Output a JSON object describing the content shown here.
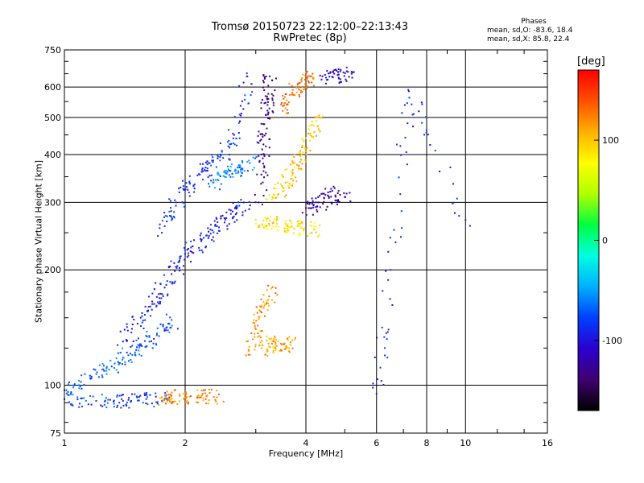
{
  "chart_data": {
    "type": "scatter",
    "title": "Tromsø 20150723 22:12:00–22:13:43",
    "subtitle": "RwPretec (8p)",
    "xlabel": "Frequency [MHz]",
    "ylabel": "Stationary phase Virtual Height [km]",
    "x_scale": "log",
    "y_scale": "log",
    "xlim": [
      1,
      16
    ],
    "ylim": [
      75,
      750
    ],
    "x_ticks": [
      "1",
      "2",
      "4",
      "6",
      "8",
      "10",
      "16"
    ],
    "y_ticks": [
      "75",
      "100",
      "200",
      "300",
      "400",
      "500",
      "600",
      "750"
    ],
    "x_ticks_numeric": [
      1,
      2,
      4,
      6,
      8,
      10,
      16
    ],
    "y_ticks_numeric": [
      75,
      100,
      200,
      300,
      400,
      500,
      600,
      750
    ],
    "grid": true,
    "colorbar": {
      "label": "[deg]",
      "ticks": [
        "100",
        "0",
        "-100"
      ],
      "ticks_numeric": [
        100,
        0,
        -100
      ],
      "range": [
        -170,
        170
      ],
      "colors": [
        "#000000",
        "#400070",
        "#2a00d0",
        "#0040ff",
        "#00b0ff",
        "#00ffe0",
        "#00ff40",
        "#b0ff00",
        "#ffff00",
        "#ffb000",
        "#ff5000",
        "#ff0000"
      ]
    },
    "annotations": {
      "phases_title": "Phases",
      "sd_o": "mean, sd,O:  -83.6, 18.4",
      "sd_x": "mean, sd,X:   85.8, 22.4"
    },
    "series": [
      {
        "x": [
          1.0,
          1.1,
          1.25,
          1.4,
          1.55,
          1.7,
          1.85
        ],
        "y": [
          97,
          102,
          110,
          118,
          128,
          135,
          148
        ],
        "phase": -70
      },
      {
        "x": [
          1.0,
          1.2,
          1.4,
          1.6,
          1.8
        ],
        "y": [
          92,
          91,
          91,
          92,
          92
        ],
        "phase": -80
      },
      {
        "x": [
          1.75,
          1.85,
          2.0,
          2.2,
          2.4
        ],
        "y": [
          93,
          94,
          93,
          94,
          93
        ],
        "phase": 120
      },
      {
        "x": [
          1.4,
          1.55,
          1.7,
          1.85,
          2.0,
          2.2,
          2.4,
          2.6,
          2.8
        ],
        "y": [
          130,
          150,
          170,
          195,
          220,
          240,
          260,
          280,
          300
        ],
        "phase": -95
      },
      {
        "x": [
          1.75,
          1.9,
          2.05,
          2.25,
          2.45,
          2.65,
          2.85
        ],
        "y": [
          250,
          300,
          340,
          370,
          400,
          450,
          640
        ],
        "phase": -85
      },
      {
        "x": [
          2.3,
          2.5,
          2.7,
          2.9
        ],
        "y": [
          330,
          360,
          370,
          380
        ],
        "phase": -60
      },
      {
        "x": [
          3.05,
          3.1,
          3.15,
          3.2,
          3.25
        ],
        "y": [
          300,
          400,
          480,
          560,
          640
        ],
        "phase": -130
      },
      {
        "x": [
          2.9,
          3.0,
          3.1,
          3.3
        ],
        "y": [
          120,
          140,
          160,
          180
        ],
        "phase": 120
      },
      {
        "x": [
          3.1,
          3.3,
          3.5,
          3.7
        ],
        "y": [
          125,
          130,
          128,
          131
        ],
        "phase": 110
      },
      {
        "x": [
          3.0,
          3.3,
          3.6,
          3.9,
          4.2
        ],
        "y": [
          270,
          265,
          262,
          258,
          255
        ],
        "phase": 90
      },
      {
        "x": [
          3.3,
          3.5,
          3.7,
          3.9,
          4.1,
          4.3
        ],
        "y": [
          310,
          330,
          360,
          400,
          450,
          500
        ],
        "phase": 100
      },
      {
        "x": [
          3.5,
          3.7,
          3.9,
          4.1
        ],
        "y": [
          520,
          580,
          620,
          640
        ],
        "phase": 130
      },
      {
        "x": [
          4.0,
          4.3,
          4.6,
          5.0
        ],
        "y": [
          290,
          300,
          320,
          310
        ],
        "phase": -120
      },
      {
        "x": [
          4.4,
          4.8,
          5.2
        ],
        "y": [
          640,
          645,
          650
        ],
        "phase": -110
      },
      {
        "x": [
          6.0,
          6.5,
          7.2,
          10.0
        ],
        "y": [
          95,
          200,
          590,
          270
        ],
        "phase": -90
      }
    ]
  }
}
